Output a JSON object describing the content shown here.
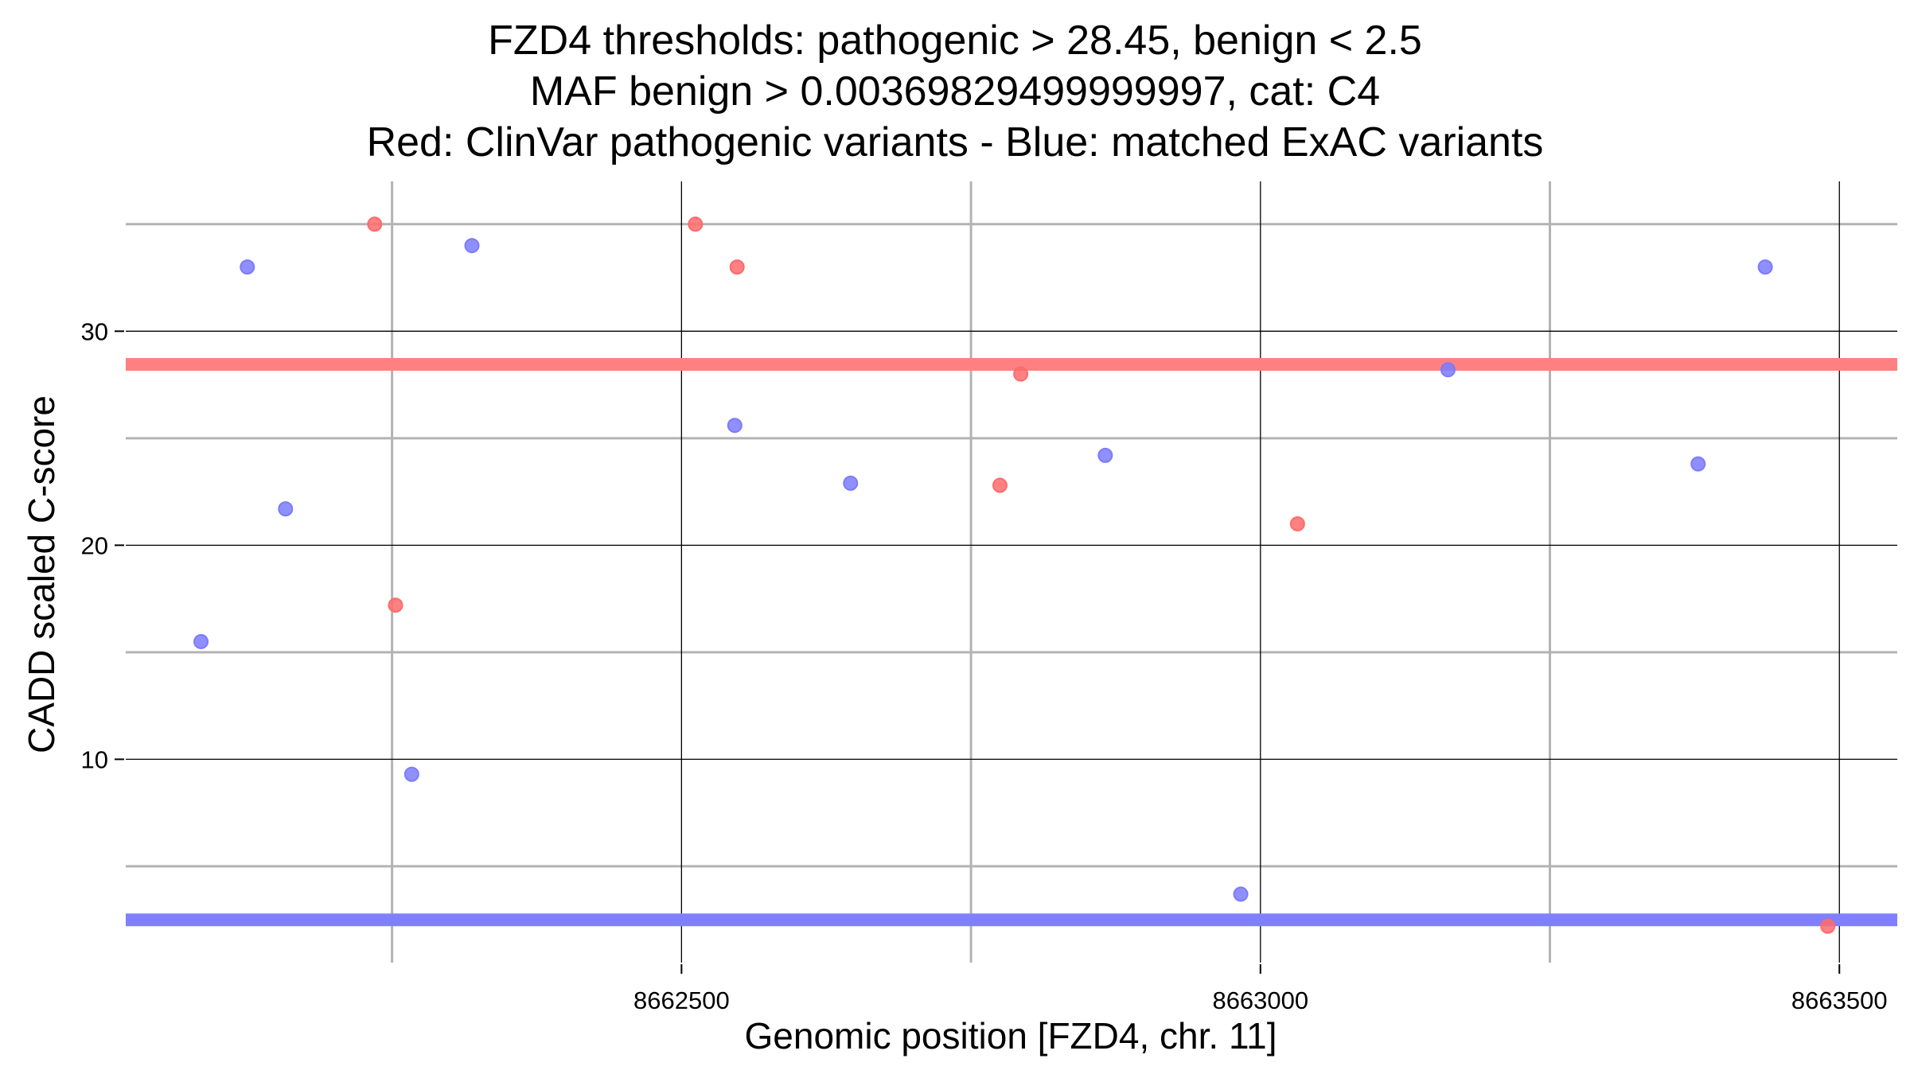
{
  "chart_data": {
    "type": "scatter",
    "title_lines": [
      "FZD4 thresholds: pathogenic > 28.45, benign < 2.5",
      "MAF benign > 0.00369829499999997, cat: C4",
      "Red: ClinVar pathogenic variants - Blue: matched ExAC variants"
    ],
    "xlabel": "Genomic position [FZD4, chr. 11]",
    "ylabel": "CADD scaled C-score",
    "x_ticks": [
      8662500,
      8663000,
      8663500
    ],
    "y_ticks": [
      10,
      20,
      30
    ],
    "xlim": [
      8662020,
      8663550
    ],
    "ylim": [
      0.5,
      37
    ],
    "grid": true,
    "thresholds": [
      {
        "name": "pathogenic",
        "value": 28.45,
        "color": "#ff8080"
      },
      {
        "name": "benign",
        "value": 2.5,
        "color": "#8080ff"
      }
    ],
    "series": [
      {
        "color": "#ff6b6b",
        "points": [
          {
            "x": 8662235,
            "y": 35.0
          },
          {
            "x": 8662253,
            "y": 17.2
          },
          {
            "x": 8662512,
            "y": 35.0
          },
          {
            "x": 8662548,
            "y": 33.0
          },
          {
            "x": 8662775,
            "y": 22.8
          },
          {
            "x": 8662793,
            "y": 28.0
          },
          {
            "x": 8663032,
            "y": 21.0
          },
          {
            "x": 8663490,
            "y": 2.2
          }
        ]
      },
      {
        "color": "#7b7bff",
        "points": [
          {
            "x": 8662085,
            "y": 15.5
          },
          {
            "x": 8662125,
            "y": 33.0
          },
          {
            "x": 8662158,
            "y": 21.7
          },
          {
            "x": 8662267,
            "y": 9.3
          },
          {
            "x": 8662319,
            "y": 34.0
          },
          {
            "x": 8662546,
            "y": 25.6
          },
          {
            "x": 8662646,
            "y": 22.9
          },
          {
            "x": 8662866,
            "y": 24.2
          },
          {
            "x": 8662983,
            "y": 3.7
          },
          {
            "x": 8663162,
            "y": 28.2
          },
          {
            "x": 8663378,
            "y": 23.8
          },
          {
            "x": 8663436,
            "y": 33.0
          }
        ]
      }
    ]
  }
}
